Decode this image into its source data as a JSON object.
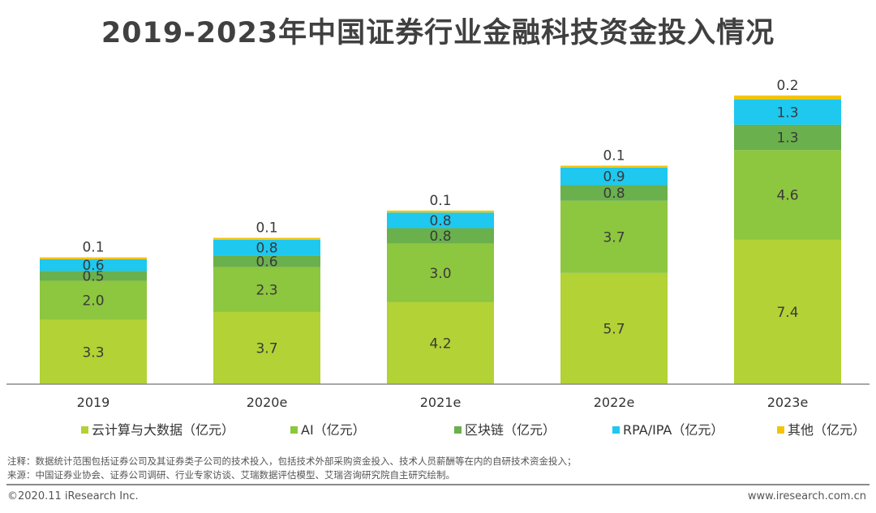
{
  "title": "2019-2023年中国证券行业金融科技资金投入情况",
  "chart_data": {
    "type": "bar",
    "stacked": true,
    "title": "2019-2023年中国证券行业金融科技资金投入情况",
    "categories": [
      "2019",
      "2020e",
      "2021e",
      "2022e",
      "2023e"
    ],
    "series": [
      {
        "name": "云计算与大数据（亿元）",
        "color": "#b2d235",
        "values": [
          3.3,
          3.7,
          4.2,
          5.7,
          7.4
        ]
      },
      {
        "name": "AI（亿元）",
        "color": "#8dc63f",
        "values": [
          2.0,
          2.3,
          3.0,
          3.7,
          4.6
        ]
      },
      {
        "name": "区块链（亿元）",
        "color": "#6ab04c",
        "values": [
          0.5,
          0.6,
          0.8,
          0.8,
          1.3
        ]
      },
      {
        "name": "RPA/IPA（亿元）",
        "color": "#1ec8ef",
        "values": [
          0.6,
          0.8,
          0.8,
          0.9,
          1.3
        ]
      },
      {
        "name": "其他（亿元）",
        "color": "#f5c400",
        "values": [
          0.1,
          0.1,
          0.1,
          0.1,
          0.2
        ]
      }
    ],
    "ylim": [
      0,
      15
    ],
    "legend_position": "bottom",
    "grid": false
  },
  "notes": {
    "note": "注释：数据统计范围包括证券公司及其证券类子公司的技术投入，包括技术外部采购资金投入、技术人员薪酬等在内的自研技术资金投入；",
    "source": "来源：中国证券业协会、证券公司调研、行业专家访谈、艾瑞数据评估模型、艾瑞咨询研究院自主研究绘制。"
  },
  "footer": {
    "copyright": "©2020.11 iResearch Inc.",
    "website": "www.iresearch.com.cn"
  }
}
